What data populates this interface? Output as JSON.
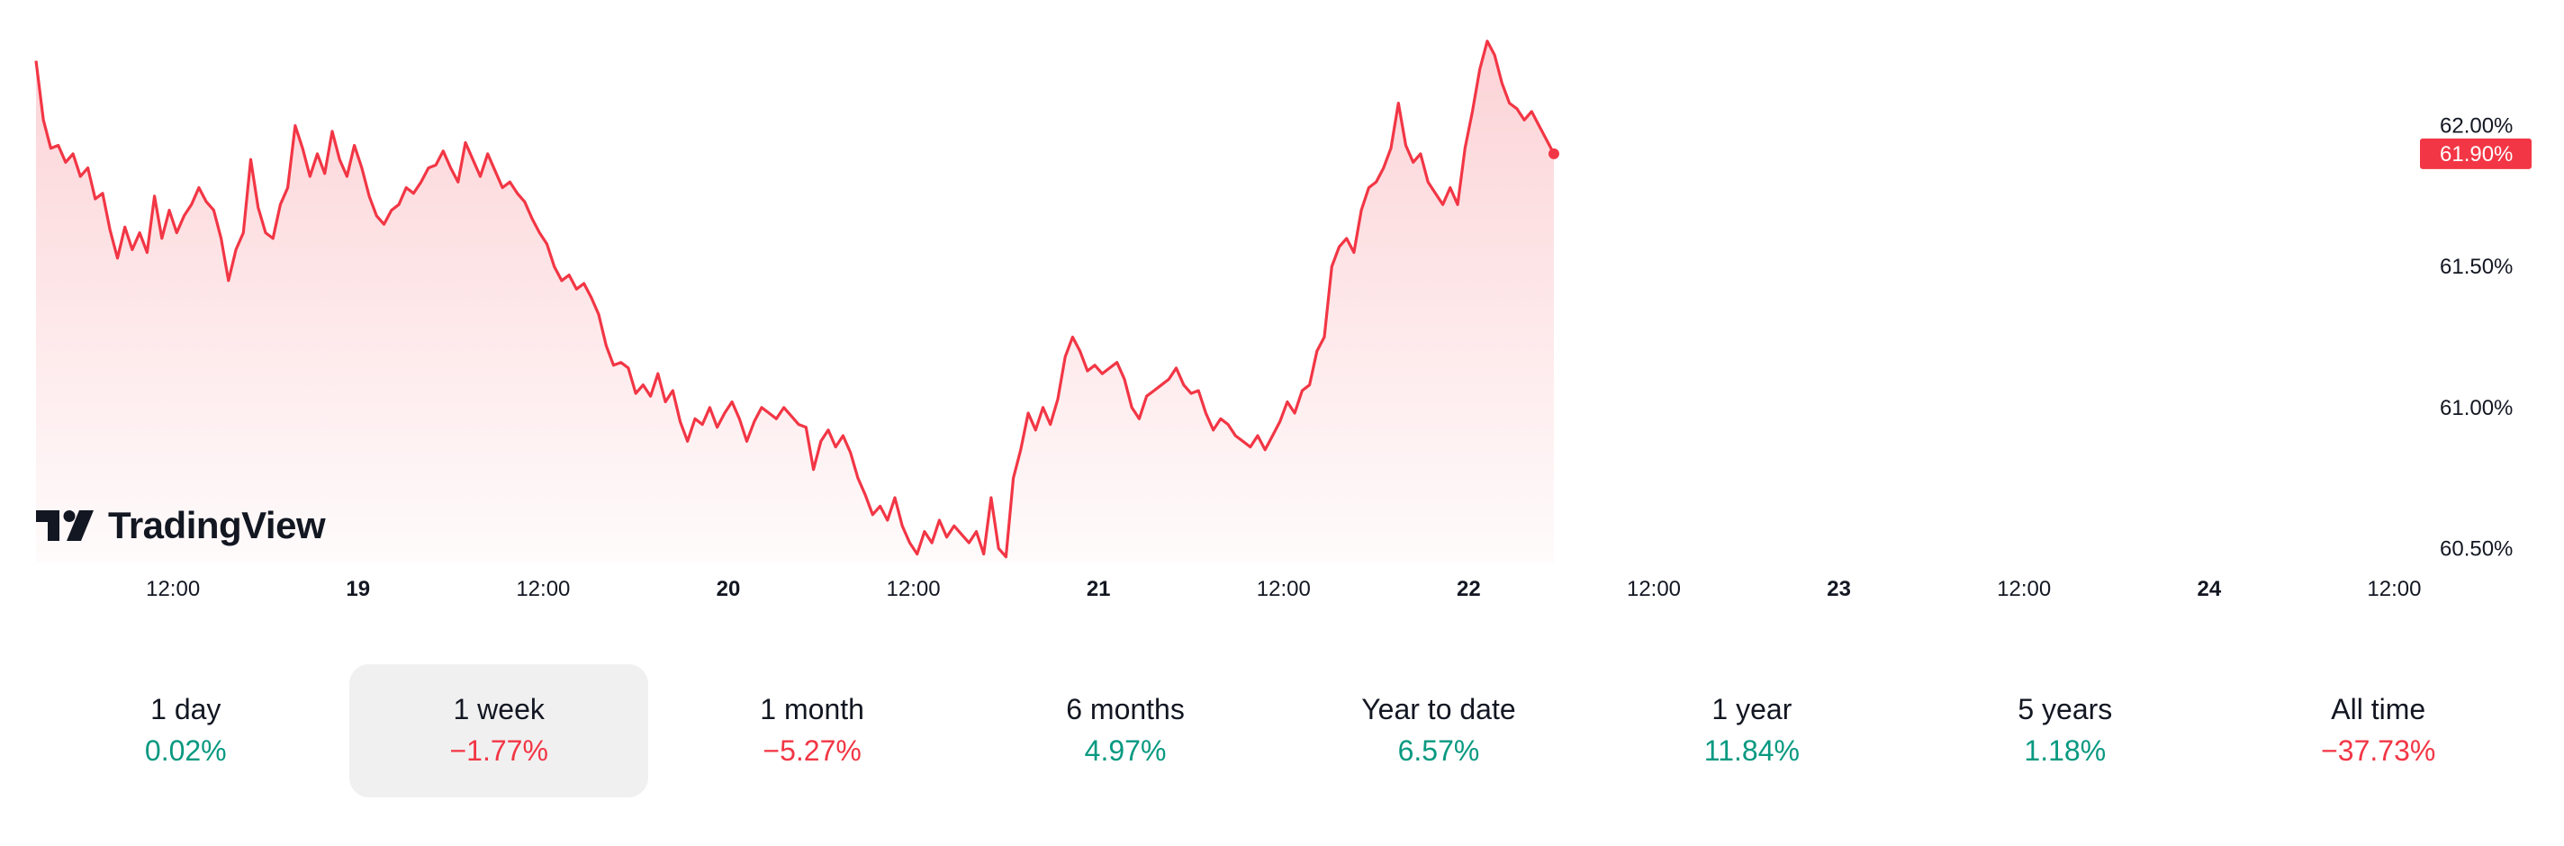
{
  "brand": {
    "name": "TradingView",
    "logo_icon": "tradingview-logo-icon"
  },
  "colors": {
    "line": "#f23645",
    "positive": "#089981",
    "negative": "#f23645",
    "active_bg": "#f0f0f0"
  },
  "chart_data": {
    "type": "area",
    "price_axis": {
      "ticks": [
        "62.00%",
        "61.50%",
        "61.00%",
        "60.50%"
      ],
      "tick_values": [
        62.0,
        61.5,
        61.0,
        60.5
      ],
      "range": [
        60.45,
        62.35
      ]
    },
    "time_axis": {
      "ticks": [
        {
          "label": "12:00",
          "t": 0.5,
          "bold": false
        },
        {
          "label": "19",
          "t": 1.0,
          "bold": true
        },
        {
          "label": "12:00",
          "t": 1.5,
          "bold": false
        },
        {
          "label": "20",
          "t": 2.0,
          "bold": true
        },
        {
          "label": "12:00",
          "t": 2.5,
          "bold": false
        },
        {
          "label": "21",
          "t": 3.0,
          "bold": true
        },
        {
          "label": "12:00",
          "t": 3.5,
          "bold": false
        },
        {
          "label": "22",
          "t": 4.0,
          "bold": true
        },
        {
          "label": "12:00",
          "t": 4.5,
          "bold": false
        },
        {
          "label": "23",
          "t": 5.0,
          "bold": true
        },
        {
          "label": "12:00",
          "t": 5.5,
          "bold": false
        },
        {
          "label": "24",
          "t": 6.0,
          "bold": true
        },
        {
          "label": "12:00",
          "t": 6.5,
          "bold": false
        }
      ],
      "range": [
        0.13,
        6.55
      ]
    },
    "last_value": {
      "label": "61.90%",
      "value": 61.9
    },
    "series": [
      {
        "points": [
          [
            0.13,
            62.23
          ],
          [
            0.15,
            62.02
          ],
          [
            0.17,
            61.92
          ],
          [
            0.19,
            61.93
          ],
          [
            0.21,
            61.87
          ],
          [
            0.23,
            61.9
          ],
          [
            0.25,
            61.82
          ],
          [
            0.27,
            61.85
          ],
          [
            0.29,
            61.74
          ],
          [
            0.31,
            61.76
          ],
          [
            0.33,
            61.63
          ],
          [
            0.35,
            61.53
          ],
          [
            0.37,
            61.64
          ],
          [
            0.39,
            61.56
          ],
          [
            0.41,
            61.62
          ],
          [
            0.43,
            61.55
          ],
          [
            0.45,
            61.75
          ],
          [
            0.47,
            61.6
          ],
          [
            0.49,
            61.7
          ],
          [
            0.51,
            61.62
          ],
          [
            0.53,
            61.68
          ],
          [
            0.55,
            61.72
          ],
          [
            0.57,
            61.78
          ],
          [
            0.59,
            61.73
          ],
          [
            0.61,
            61.7
          ],
          [
            0.63,
            61.6
          ],
          [
            0.65,
            61.45
          ],
          [
            0.67,
            61.56
          ],
          [
            0.69,
            61.62
          ],
          [
            0.71,
            61.88
          ],
          [
            0.73,
            61.71
          ],
          [
            0.75,
            61.62
          ],
          [
            0.77,
            61.6
          ],
          [
            0.79,
            61.72
          ],
          [
            0.81,
            61.78
          ],
          [
            0.83,
            62.0
          ],
          [
            0.85,
            61.92
          ],
          [
            0.87,
            61.82
          ],
          [
            0.89,
            61.9
          ],
          [
            0.91,
            61.83
          ],
          [
            0.93,
            61.98
          ],
          [
            0.95,
            61.88
          ],
          [
            0.97,
            61.82
          ],
          [
            0.99,
            61.93
          ],
          [
            1.01,
            61.85
          ],
          [
            1.03,
            61.75
          ],
          [
            1.05,
            61.68
          ],
          [
            1.07,
            61.65
          ],
          [
            1.09,
            61.7
          ],
          [
            1.11,
            61.72
          ],
          [
            1.13,
            61.78
          ],
          [
            1.15,
            61.76
          ],
          [
            1.17,
            61.8
          ],
          [
            1.19,
            61.85
          ],
          [
            1.21,
            61.86
          ],
          [
            1.23,
            61.91
          ],
          [
            1.25,
            61.85
          ],
          [
            1.27,
            61.8
          ],
          [
            1.29,
            61.94
          ],
          [
            1.31,
            61.88
          ],
          [
            1.33,
            61.82
          ],
          [
            1.35,
            61.9
          ],
          [
            1.37,
            61.84
          ],
          [
            1.39,
            61.78
          ],
          [
            1.41,
            61.8
          ],
          [
            1.43,
            61.76
          ],
          [
            1.45,
            61.73
          ],
          [
            1.47,
            61.67
          ],
          [
            1.49,
            61.62
          ],
          [
            1.51,
            61.58
          ],
          [
            1.53,
            61.5
          ],
          [
            1.55,
            61.45
          ],
          [
            1.57,
            61.47
          ],
          [
            1.59,
            61.42
          ],
          [
            1.61,
            61.44
          ],
          [
            1.63,
            61.39
          ],
          [
            1.65,
            61.33
          ],
          [
            1.67,
            61.22
          ],
          [
            1.69,
            61.15
          ],
          [
            1.71,
            61.16
          ],
          [
            1.73,
            61.14
          ],
          [
            1.75,
            61.05
          ],
          [
            1.77,
            61.08
          ],
          [
            1.79,
            61.04
          ],
          [
            1.81,
            61.12
          ],
          [
            1.83,
            61.02
          ],
          [
            1.85,
            61.06
          ],
          [
            1.87,
            60.95
          ],
          [
            1.89,
            60.88
          ],
          [
            1.91,
            60.96
          ],
          [
            1.93,
            60.94
          ],
          [
            1.95,
            61.0
          ],
          [
            1.97,
            60.93
          ],
          [
            1.99,
            60.98
          ],
          [
            2.01,
            61.02
          ],
          [
            2.03,
            60.96
          ],
          [
            2.05,
            60.88
          ],
          [
            2.07,
            60.95
          ],
          [
            2.09,
            61.0
          ],
          [
            2.11,
            60.98
          ],
          [
            2.13,
            60.96
          ],
          [
            2.15,
            61.0
          ],
          [
            2.17,
            60.97
          ],
          [
            2.19,
            60.94
          ],
          [
            2.21,
            60.93
          ],
          [
            2.23,
            60.78
          ],
          [
            2.25,
            60.88
          ],
          [
            2.27,
            60.92
          ],
          [
            2.29,
            60.86
          ],
          [
            2.31,
            60.9
          ],
          [
            2.33,
            60.84
          ],
          [
            2.35,
            60.75
          ],
          [
            2.37,
            60.69
          ],
          [
            2.39,
            60.62
          ],
          [
            2.41,
            60.65
          ],
          [
            2.43,
            60.6
          ],
          [
            2.45,
            60.68
          ],
          [
            2.47,
            60.58
          ],
          [
            2.49,
            60.52
          ],
          [
            2.51,
            60.48
          ],
          [
            2.53,
            60.56
          ],
          [
            2.55,
            60.52
          ],
          [
            2.57,
            60.6
          ],
          [
            2.59,
            60.54
          ],
          [
            2.61,
            60.58
          ],
          [
            2.63,
            60.55
          ],
          [
            2.65,
            60.52
          ],
          [
            2.67,
            60.56
          ],
          [
            2.69,
            60.48
          ],
          [
            2.71,
            60.68
          ],
          [
            2.73,
            60.5
          ],
          [
            2.75,
            60.47
          ],
          [
            2.77,
            60.75
          ],
          [
            2.79,
            60.85
          ],
          [
            2.81,
            60.98
          ],
          [
            2.83,
            60.92
          ],
          [
            2.85,
            61.0
          ],
          [
            2.87,
            60.94
          ],
          [
            2.89,
            61.03
          ],
          [
            2.91,
            61.18
          ],
          [
            2.93,
            61.25
          ],
          [
            2.95,
            61.2
          ],
          [
            2.97,
            61.13
          ],
          [
            2.99,
            61.15
          ],
          [
            3.01,
            61.12
          ],
          [
            3.03,
            61.14
          ],
          [
            3.05,
            61.16
          ],
          [
            3.07,
            61.1
          ],
          [
            3.09,
            61.0
          ],
          [
            3.11,
            60.96
          ],
          [
            3.13,
            61.04
          ],
          [
            3.15,
            61.06
          ],
          [
            3.17,
            61.08
          ],
          [
            3.19,
            61.1
          ],
          [
            3.21,
            61.14
          ],
          [
            3.23,
            61.08
          ],
          [
            3.25,
            61.05
          ],
          [
            3.27,
            61.06
          ],
          [
            3.29,
            60.98
          ],
          [
            3.31,
            60.92
          ],
          [
            3.33,
            60.96
          ],
          [
            3.35,
            60.94
          ],
          [
            3.37,
            60.9
          ],
          [
            3.39,
            60.88
          ],
          [
            3.41,
            60.86
          ],
          [
            3.43,
            60.9
          ],
          [
            3.45,
            60.85
          ],
          [
            3.47,
            60.9
          ],
          [
            3.49,
            60.95
          ],
          [
            3.51,
            61.02
          ],
          [
            3.53,
            60.98
          ],
          [
            3.55,
            61.06
          ],
          [
            3.57,
            61.08
          ],
          [
            3.59,
            61.2
          ],
          [
            3.61,
            61.25
          ],
          [
            3.63,
            61.5
          ],
          [
            3.65,
            61.57
          ],
          [
            3.67,
            61.6
          ],
          [
            3.69,
            61.55
          ],
          [
            3.71,
            61.7
          ],
          [
            3.73,
            61.78
          ],
          [
            3.75,
            61.8
          ],
          [
            3.77,
            61.85
          ],
          [
            3.79,
            61.92
          ],
          [
            3.81,
            62.08
          ],
          [
            3.83,
            61.93
          ],
          [
            3.85,
            61.87
          ],
          [
            3.87,
            61.9
          ],
          [
            3.89,
            61.8
          ],
          [
            3.91,
            61.76
          ],
          [
            3.93,
            61.72
          ],
          [
            3.95,
            61.78
          ],
          [
            3.97,
            61.72
          ],
          [
            3.99,
            61.92
          ],
          [
            4.01,
            62.05
          ],
          [
            4.03,
            62.2
          ],
          [
            4.05,
            62.3
          ],
          [
            4.07,
            62.25
          ],
          [
            4.09,
            62.15
          ],
          [
            4.11,
            62.08
          ],
          [
            4.13,
            62.06
          ],
          [
            4.15,
            62.02
          ],
          [
            4.17,
            62.05
          ],
          [
            4.19,
            62.0
          ],
          [
            4.21,
            61.95
          ],
          [
            4.23,
            61.9
          ]
        ]
      }
    ]
  },
  "ranges": [
    {
      "label": "1 day",
      "value": "0.02%",
      "sign": "pos",
      "active": false
    },
    {
      "label": "1 week",
      "value": "−1.77%",
      "sign": "neg",
      "active": true
    },
    {
      "label": "1 month",
      "value": "−5.27%",
      "sign": "neg",
      "active": false
    },
    {
      "label": "6 months",
      "value": "4.97%",
      "sign": "pos",
      "active": false
    },
    {
      "label": "Year to date",
      "value": "6.57%",
      "sign": "pos",
      "active": false
    },
    {
      "label": "1 year",
      "value": "11.84%",
      "sign": "pos",
      "active": false
    },
    {
      "label": "5 years",
      "value": "1.18%",
      "sign": "pos",
      "active": false
    },
    {
      "label": "All time",
      "value": "−37.73%",
      "sign": "neg",
      "active": false
    }
  ]
}
